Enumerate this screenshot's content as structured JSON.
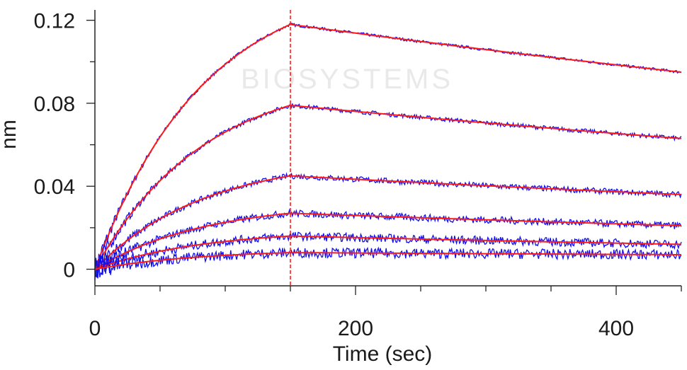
{
  "chart_data": {
    "type": "line",
    "title": "",
    "xlabel": "Time (sec)",
    "ylabel": "nm",
    "xlim": [
      0,
      450
    ],
    "ylim": [
      -0.008,
      0.125
    ],
    "x_ticks": [
      0,
      200,
      400
    ],
    "y_ticks": [
      0,
      0.04,
      0.08,
      0.12
    ],
    "x_tick_labels": [
      "0",
      "200",
      "400"
    ],
    "y_tick_labels": [
      "0",
      "0.04",
      "0.08",
      "0.12"
    ],
    "grid": false,
    "legend": "none",
    "dissociation_start": 150,
    "watermark": "BIOSYSTEMS",
    "colors": {
      "raw": "#1010ee",
      "fit": "#ff1a1a",
      "axis": "#222222",
      "marker": "#ff1a1a"
    },
    "series": [
      {
        "peak": 0.118,
        "end": 0.095
      },
      {
        "peak": 0.079,
        "end": 0.063
      },
      {
        "peak": 0.045,
        "end": 0.036
      },
      {
        "peak": 0.027,
        "end": 0.021
      },
      {
        "peak": 0.016,
        "end": 0.012
      },
      {
        "peak": 0.008,
        "end": 0.007
      }
    ]
  }
}
